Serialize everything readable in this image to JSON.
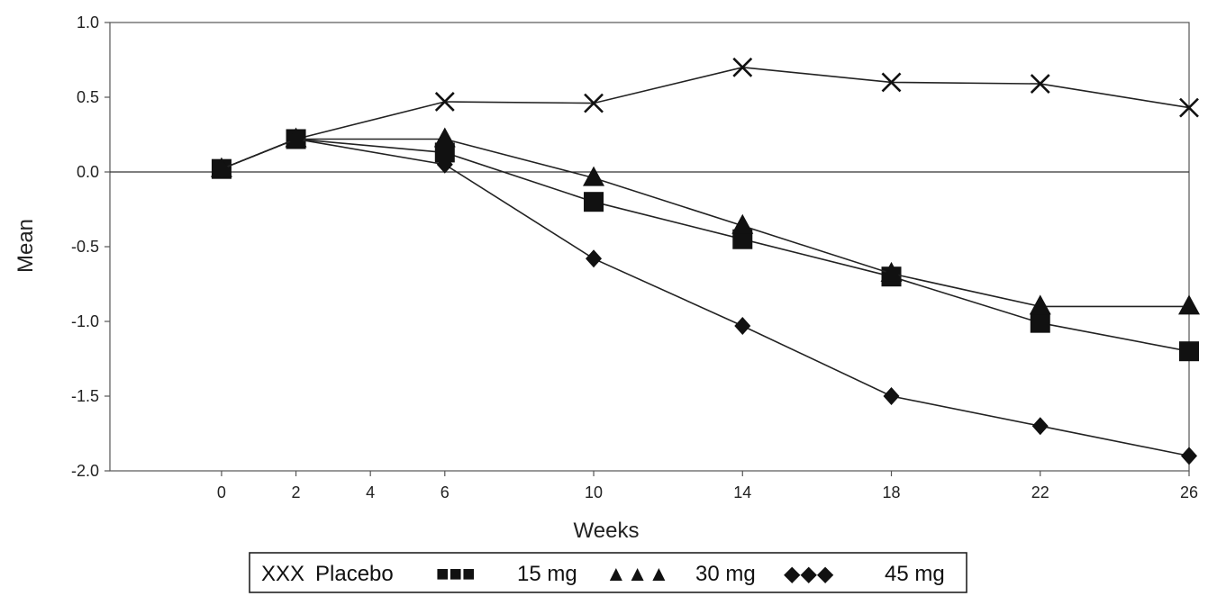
{
  "chart_data": {
    "type": "line",
    "title": "",
    "xlabel": "Weeks",
    "ylabel": "Mean",
    "xlim": [
      -3,
      26
    ],
    "ylim": [
      -2.0,
      1.0
    ],
    "xticks": [
      0,
      2,
      4,
      6,
      10,
      14,
      18,
      22,
      26
    ],
    "yticks": [
      1.0,
      0.5,
      0.0,
      -0.5,
      -1.0,
      -1.5,
      -2.0
    ],
    "ytick_labels": [
      "1.0",
      "0.5",
      "0.0",
      "-0.5",
      "-1.0",
      "-1.5",
      "-2.0"
    ],
    "grid": false,
    "zero_line": true,
    "series": [
      {
        "key": "placebo",
        "marker": "x",
        "legend_symbol": "XXX",
        "name": "Placebo",
        "x": [
          0,
          2,
          6,
          10,
          14,
          18,
          22,
          26
        ],
        "y": [
          0.02,
          0.22,
          0.47,
          0.46,
          0.7,
          0.6,
          0.59,
          0.43
        ]
      },
      {
        "key": "15mg",
        "marker": "square",
        "legend_symbol": "■■■",
        "name": "15 mg",
        "x": [
          0,
          2,
          6,
          10,
          14,
          18,
          22,
          26
        ],
        "y": [
          0.02,
          0.22,
          0.13,
          -0.2,
          -0.45,
          -0.7,
          -1.01,
          -1.2
        ]
      },
      {
        "key": "30mg",
        "marker": "triangle",
        "legend_symbol": "▲▲▲",
        "name": "30 mg",
        "x": [
          0,
          2,
          6,
          10,
          14,
          18,
          22,
          26
        ],
        "y": [
          0.02,
          0.22,
          0.22,
          -0.04,
          -0.36,
          -0.68,
          -0.9,
          -0.9
        ]
      },
      {
        "key": "45mg",
        "marker": "diamond",
        "legend_symbol": "◆◆◆",
        "name": "45 mg",
        "x": [
          0,
          2,
          6,
          10,
          14,
          18,
          22,
          26
        ],
        "y": [
          0.02,
          0.22,
          0.05,
          -0.58,
          -1.03,
          -1.5,
          -1.7,
          -1.9
        ]
      }
    ],
    "legend": {
      "placement": "bottom-center"
    }
  }
}
